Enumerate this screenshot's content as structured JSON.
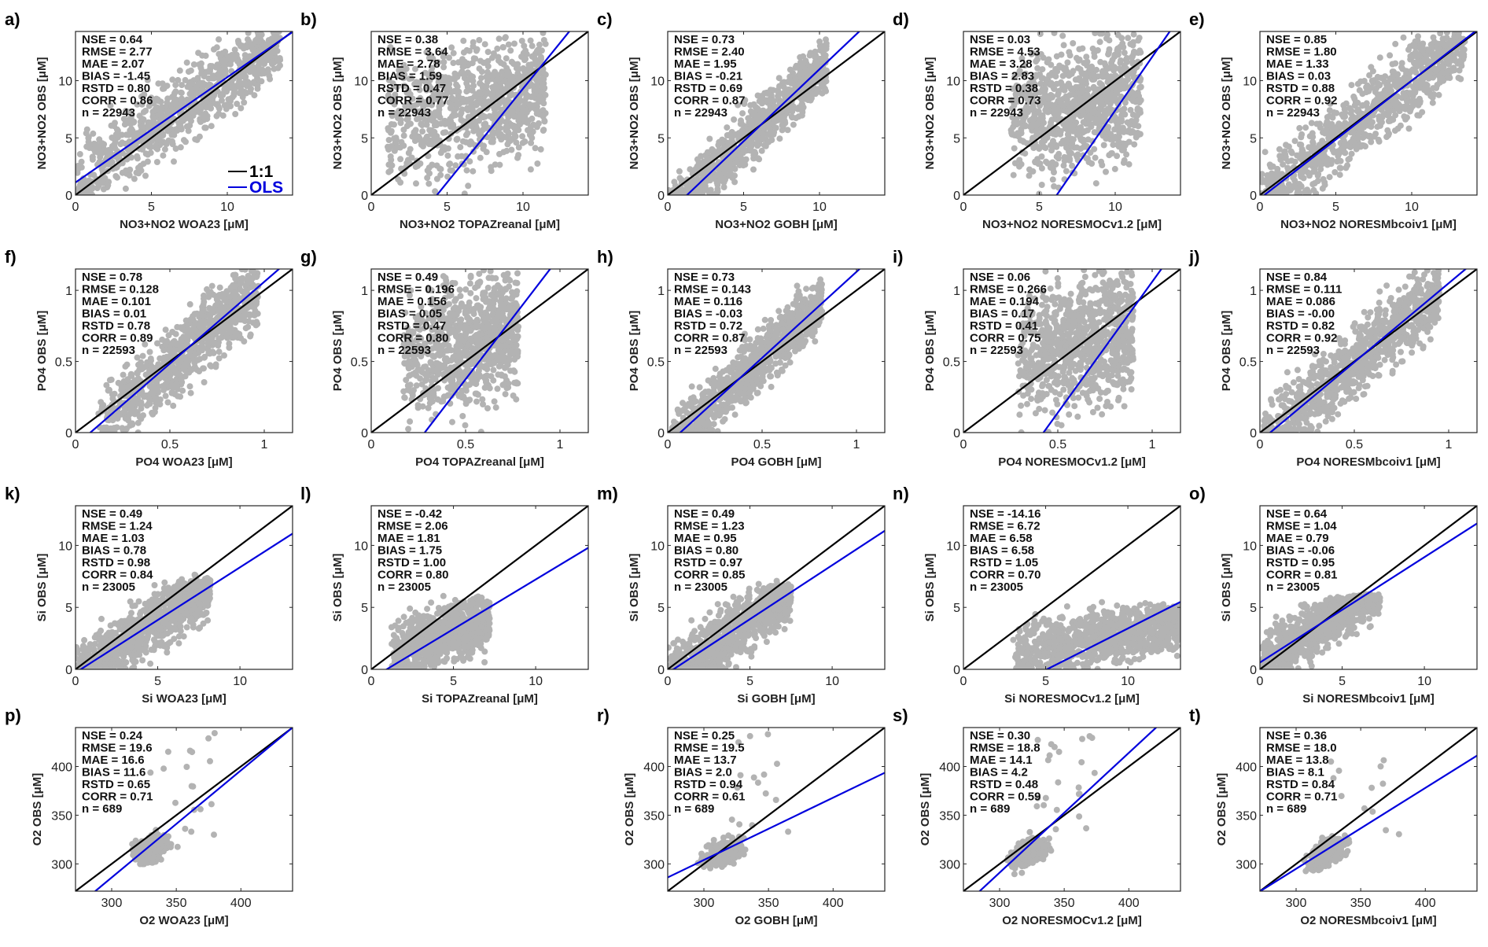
{
  "chart_data": {
    "type": "scatter",
    "title": "",
    "colors": {
      "points": "#b3b3b3",
      "one_to_one": "#000000",
      "ols": "#0000dd"
    },
    "legend": {
      "placement": "bottom-right of panel a",
      "entries": [
        {
          "label": "1:1",
          "color": "#000000"
        },
        {
          "label": "OLS",
          "color": "#0000dd"
        }
      ]
    },
    "panels": [
      {
        "id": "a",
        "label": "a)",
        "xlabel": "NO3+NO2 WOA23  [μM]",
        "ylabel": "NO3+NO2 OBS [μM]",
        "xlim": [
          0,
          14.3
        ],
        "ylim": [
          0,
          14.3
        ],
        "xticks": [
          0,
          5,
          10
        ],
        "yticks": [
          0,
          5,
          10
        ],
        "stats": [
          "NSE = 0.64",
          "RMSE = 2.77",
          "MAE = 2.07",
          "BIAS = -1.45",
          "RSTD = 0.80",
          "CORR = 0.86",
          "n = 22943"
        ],
        "ols": {
          "slope": 0.92,
          "intercept": 1.1
        },
        "cloud": {
          "shape": "broad",
          "xmax": 13.5
        }
      },
      {
        "id": "b",
        "label": "b)",
        "xlabel": "NO3+NO2 TOPAZreanal  [μM]",
        "ylabel": "NO3+NO2 OBS [μM]",
        "xlim": [
          0,
          14.3
        ],
        "ylim": [
          0,
          14.3
        ],
        "xticks": [
          0,
          5,
          10
        ],
        "yticks": [
          0,
          5,
          10
        ],
        "stats": [
          "NSE = 0.38",
          "RMSE = 3.64",
          "MAE = 2.78",
          "BIAS = 1.59",
          "RSTD = 0.47",
          "CORR = 0.77",
          "n = 22943"
        ],
        "ols": {
          "slope": 1.64,
          "intercept": -7.1
        },
        "cloud": {
          "shape": "narrow",
          "xmin": 1.0,
          "xmax": 11.5
        }
      },
      {
        "id": "c",
        "label": "c)",
        "xlabel": "NO3+NO2 GOBH  [μM]",
        "ylabel": "NO3+NO2 OBS [μM]",
        "xlim": [
          0,
          14.3
        ],
        "ylim": [
          0,
          14.3
        ],
        "xticks": [
          0,
          5,
          10
        ],
        "yticks": [
          0,
          5,
          10
        ],
        "stats": [
          "NSE = 0.73",
          "RMSE = 2.40",
          "MAE = 1.95",
          "BIAS = -0.21",
          "RSTD = 0.69",
          "CORR = 0.87",
          "n = 22943"
        ],
        "ols": {
          "slope": 1.26,
          "intercept": -1.6
        },
        "cloud": {
          "shape": "medium",
          "xmax": 10.5
        }
      },
      {
        "id": "d",
        "label": "d)",
        "xlabel": "NO3+NO2 NORESMOCv1.2  [μM]",
        "ylabel": "NO3+NO2 OBS [μM]",
        "xlim": [
          0,
          14.3
        ],
        "ylim": [
          0,
          14.3
        ],
        "xticks": [
          0,
          5,
          10
        ],
        "yticks": [
          0,
          5,
          10
        ],
        "stats": [
          "NSE = 0.03",
          "RMSE = 4.53",
          "MAE = 3.28",
          "BIAS = 2.83",
          "RSTD = 0.38",
          "CORR = 0.73",
          "n = 22943"
        ],
        "ols": {
          "slope": 1.92,
          "intercept": -11.8
        },
        "cloud": {
          "shape": "narrow",
          "xmin": 3.0,
          "xmax": 11.7
        }
      },
      {
        "id": "e",
        "label": "e)",
        "xlabel": "NO3+NO2 NORESMbcoiv1  [μM]",
        "ylabel": "NO3+NO2 OBS [μM]",
        "xlim": [
          0,
          14.3
        ],
        "ylim": [
          0,
          14.3
        ],
        "xticks": [
          0,
          5,
          10
        ],
        "yticks": [
          0,
          5,
          10
        ],
        "stats": [
          "NSE = 0.85",
          "RMSE = 1.80",
          "MAE = 1.33",
          "BIAS = 0.03",
          "RSTD = 0.88",
          "CORR = 0.92",
          "n = 22943"
        ],
        "ols": {
          "slope": 1.03,
          "intercept": -0.3
        },
        "cloud": {
          "shape": "broad",
          "xmax": 13.5
        }
      },
      {
        "id": "f",
        "label": "f)",
        "xlabel": "PO4 WOA23  [μM]",
        "ylabel": "PO4 OBS [μM]",
        "xlim": [
          0,
          1.15
        ],
        "ylim": [
          0,
          1.15
        ],
        "xticks": [
          0,
          0.5,
          1
        ],
        "yticks": [
          0,
          0.5,
          1
        ],
        "stats": [
          "NSE = 0.78",
          "RMSE = 0.128",
          "MAE = 0.101",
          "BIAS = 0.01",
          "RSTD = 0.78",
          "CORR = 0.89",
          "n = 22593"
        ],
        "ols": {
          "slope": 1.15,
          "intercept": -0.09
        },
        "cloud": {
          "shape": "broad",
          "xmin": 0.12,
          "xmax": 0.97
        }
      },
      {
        "id": "g",
        "label": "g)",
        "xlabel": "PO4 TOPAZreanal  [μM]",
        "ylabel": "PO4 OBS [μM]",
        "xlim": [
          0,
          1.15
        ],
        "ylim": [
          0,
          1.15
        ],
        "xticks": [
          0,
          0.5,
          1
        ],
        "yticks": [
          0,
          0.5,
          1
        ],
        "stats": [
          "NSE = 0.49",
          "RMSE = 0.196",
          "MAE = 0.156",
          "BIAS = 0.05",
          "RSTD = 0.47",
          "CORR = 0.80",
          "n = 22593"
        ],
        "ols": {
          "slope": 1.73,
          "intercept": -0.49
        },
        "cloud": {
          "shape": "narrow",
          "xmin": 0.17,
          "xmax": 0.78
        }
      },
      {
        "id": "h",
        "label": "h)",
        "xlabel": "PO4 GOBH  [μM]",
        "ylabel": "PO4 OBS [μM]",
        "xlim": [
          0,
          1.15
        ],
        "ylim": [
          0,
          1.15
        ],
        "xticks": [
          0,
          0.5,
          1
        ],
        "yticks": [
          0,
          0.5,
          1
        ],
        "stats": [
          "NSE = 0.73",
          "RMSE = 0.143",
          "MAE = 0.116",
          "BIAS = -0.03",
          "RSTD = 0.72",
          "CORR = 0.87",
          "n = 22593"
        ],
        "ols": {
          "slope": 1.21,
          "intercept": -0.08
        },
        "cloud": {
          "shape": "medium",
          "xmin": 0.02,
          "xmax": 0.82
        }
      },
      {
        "id": "i",
        "label": "i)",
        "xlabel": "PO4 NORESMOCv1.2  [μM]",
        "ylabel": "PO4 OBS [μM]",
        "xlim": [
          0,
          1.15
        ],
        "ylim": [
          0,
          1.15
        ],
        "xticks": [
          0,
          0.5,
          1
        ],
        "yticks": [
          0,
          0.5,
          1
        ],
        "stats": [
          "NSE = 0.06",
          "RMSE = 0.266",
          "MAE = 0.194",
          "BIAS = 0.17",
          "RSTD = 0.41",
          "CORR = 0.75",
          "n = 22593"
        ],
        "ols": {
          "slope": 1.84,
          "intercept": -0.78
        },
        "cloud": {
          "shape": "narrow",
          "xmin": 0.29,
          "xmax": 0.9
        }
      },
      {
        "id": "j",
        "label": "j)",
        "xlabel": "PO4 NORESMbcoiv1  [μM]",
        "ylabel": "PO4 OBS [μM]",
        "xlim": [
          0,
          1.15
        ],
        "ylim": [
          0,
          1.15
        ],
        "xticks": [
          0,
          0.5,
          1
        ],
        "yticks": [
          0,
          0.5,
          1
        ],
        "stats": [
          "NSE = 0.84",
          "RMSE = 0.111",
          "MAE = 0.086",
          "BIAS = -0.00",
          "RSTD = 0.82",
          "CORR = 0.92",
          "n = 22593"
        ],
        "ols": {
          "slope": 1.11,
          "intercept": -0.06
        },
        "cloud": {
          "shape": "broad",
          "xmin": 0.02,
          "xmax": 0.95
        }
      },
      {
        "id": "k",
        "label": "k)",
        "xlabel": "Si WOA23  [μM]",
        "ylabel": "Si OBS [μM]",
        "xlim": [
          0,
          13.2
        ],
        "ylim": [
          0,
          13.2
        ],
        "xticks": [
          0,
          5,
          10
        ],
        "yticks": [
          0,
          5,
          10
        ],
        "stats": [
          "NSE = 0.49",
          "RMSE = 1.24",
          "MAE = 1.03",
          "BIAS = 0.78",
          "RSTD = 0.98",
          "CORR = 0.84",
          "n = 23005"
        ],
        "ols": {
          "slope": 0.85,
          "intercept": -0.27
        },
        "cloud": {
          "shape": "low",
          "xmax": 8.2,
          "ytop": 7.0
        }
      },
      {
        "id": "l",
        "label": "l)",
        "xlabel": "Si TOPAZreanal  [μM]",
        "ylabel": "Si OBS [μM]",
        "xlim": [
          0,
          13.2
        ],
        "ylim": [
          0,
          13.2
        ],
        "xticks": [
          0,
          5,
          10
        ],
        "yticks": [
          0,
          5,
          10
        ],
        "stats": [
          "NSE = -0.42",
          "RMSE = 2.06",
          "MAE = 1.81",
          "BIAS = 1.75",
          "RSTD = 1.00",
          "CORR = 0.80",
          "n = 23005"
        ],
        "ols": {
          "slope": 0.8,
          "intercept": -0.75
        },
        "cloud": {
          "shape": "block",
          "xmin": 1.2,
          "xmax": 7.2,
          "ytop": 5.5
        }
      },
      {
        "id": "m",
        "label": "m)",
        "xlabel": "Si GOBH  [μM]",
        "ylabel": "Si OBS [μM]",
        "xlim": [
          0,
          13.2
        ],
        "ylim": [
          0,
          13.2
        ],
        "xticks": [
          0,
          5,
          10
        ],
        "yticks": [
          0,
          5,
          10
        ],
        "stats": [
          "NSE = 0.49",
          "RMSE = 1.23",
          "MAE = 0.95",
          "BIAS = 0.80",
          "RSTD = 0.97",
          "CORR = 0.85",
          "n = 23005"
        ],
        "ols": {
          "slope": 0.87,
          "intercept": -0.3
        },
        "cloud": {
          "shape": "low",
          "xmax": 7.5,
          "ytop": 6.5
        }
      },
      {
        "id": "n",
        "label": "n)",
        "xlabel": "Si NORESMOCv1.2  [μM]",
        "ylabel": "Si OBS [μM]",
        "xlim": [
          0,
          13.2
        ],
        "ylim": [
          0,
          13.2
        ],
        "xticks": [
          0,
          5,
          10
        ],
        "yticks": [
          0,
          5,
          10
        ],
        "stats": [
          "NSE = -14.16",
          "RMSE = 6.72",
          "MAE = 6.58",
          "BIAS = 6.58",
          "RSTD = 1.05",
          "CORR = 0.70",
          "n = 23005"
        ],
        "ols": {
          "slope": 0.67,
          "intercept": -3.4
        },
        "cloud": {
          "shape": "shifted",
          "xmin": 3.0,
          "xmax": 13.2,
          "ytop": 5.0
        }
      },
      {
        "id": "o",
        "label": "o)",
        "xlabel": "Si NORESMbcoiv1  [μM]",
        "ylabel": "Si OBS [μM]",
        "xlim": [
          0,
          13.2
        ],
        "ylim": [
          0,
          13.2
        ],
        "xticks": [
          0,
          5,
          10
        ],
        "yticks": [
          0,
          5,
          10
        ],
        "stats": [
          "NSE = 0.64",
          "RMSE = 1.04",
          "MAE = 0.79",
          "BIAS = -0.06",
          "RSTD = 0.95",
          "CORR = 0.81",
          "n = 23005"
        ],
        "ols": {
          "slope": 0.85,
          "intercept": 0.55
        },
        "cloud": {
          "shape": "low",
          "xmax": 7.3,
          "ytop": 5.5
        }
      },
      {
        "id": "p",
        "label": "p)",
        "xlabel": "O2 WOA23  [μM]",
        "ylabel": "O2 OBS [μM]",
        "xlim": [
          272,
          440
        ],
        "ylim": [
          272,
          440
        ],
        "xticks": [
          300,
          350,
          400
        ],
        "yticks": [
          300,
          350,
          400
        ],
        "stats": [
          "NSE = 0.24",
          "RMSE = 19.6",
          "MAE = 16.6",
          "BIAS = 11.6",
          "RSTD = 0.65",
          "CORR = 0.71",
          "n = 689"
        ],
        "ols": {
          "slope": 1.1,
          "intercept": -44
        },
        "cloud": {
          "shape": "o2",
          "cx": 330,
          "cy": 315
        }
      },
      {
        "id": "r",
        "label": "r)",
        "xlabel": "O2 GOBH  [μM]",
        "ylabel": "O2 OBS [μM]",
        "xlim": [
          272,
          440
        ],
        "ylim": [
          272,
          440
        ],
        "xticks": [
          300,
          350,
          400
        ],
        "yticks": [
          300,
          350,
          400
        ],
        "stats": [
          "NSE = 0.25",
          "RMSE = 19.5",
          "MAE = 13.7",
          "BIAS = 2.0",
          "RSTD = 0.94",
          "CORR = 0.61",
          "n = 689"
        ],
        "ols": {
          "slope": 0.64,
          "intercept": 112
        },
        "cloud": {
          "shape": "o2",
          "cx": 315,
          "cy": 312
        }
      },
      {
        "id": "s",
        "label": "s)",
        "xlabel": "O2 NORESMOCv1.2  [μM]",
        "ylabel": "O2 OBS [μM]",
        "xlim": [
          272,
          440
        ],
        "ylim": [
          272,
          440
        ],
        "xticks": [
          300,
          350,
          400
        ],
        "yticks": [
          300,
          350,
          400
        ],
        "stats": [
          "NSE = 0.30",
          "RMSE = 18.8",
          "MAE = 14.1",
          "BIAS = 4.2",
          "RSTD = 0.48",
          "CORR = 0.59",
          "n = 689"
        ],
        "ols": {
          "slope": 1.23,
          "intercept": -78
        },
        "cloud": {
          "shape": "o2",
          "cx": 322,
          "cy": 312
        }
      },
      {
        "id": "t",
        "label": "t)",
        "xlabel": "O2 NORESMbcoiv1  [μM]",
        "ylabel": "O2 OBS [μM]",
        "xlim": [
          272,
          440
        ],
        "ylim": [
          272,
          440
        ],
        "xticks": [
          300,
          350,
          400
        ],
        "yticks": [
          300,
          350,
          400
        ],
        "stats": [
          "NSE = 0.36",
          "RMSE = 18.0",
          "MAE = 13.8",
          "BIAS = 8.1",
          "RSTD = 0.84",
          "CORR = 0.71",
          "n = 689"
        ],
        "ols": {
          "slope": 0.83,
          "intercept": 46
        },
        "cloud": {
          "shape": "o2",
          "cx": 325,
          "cy": 312
        }
      }
    ]
  }
}
